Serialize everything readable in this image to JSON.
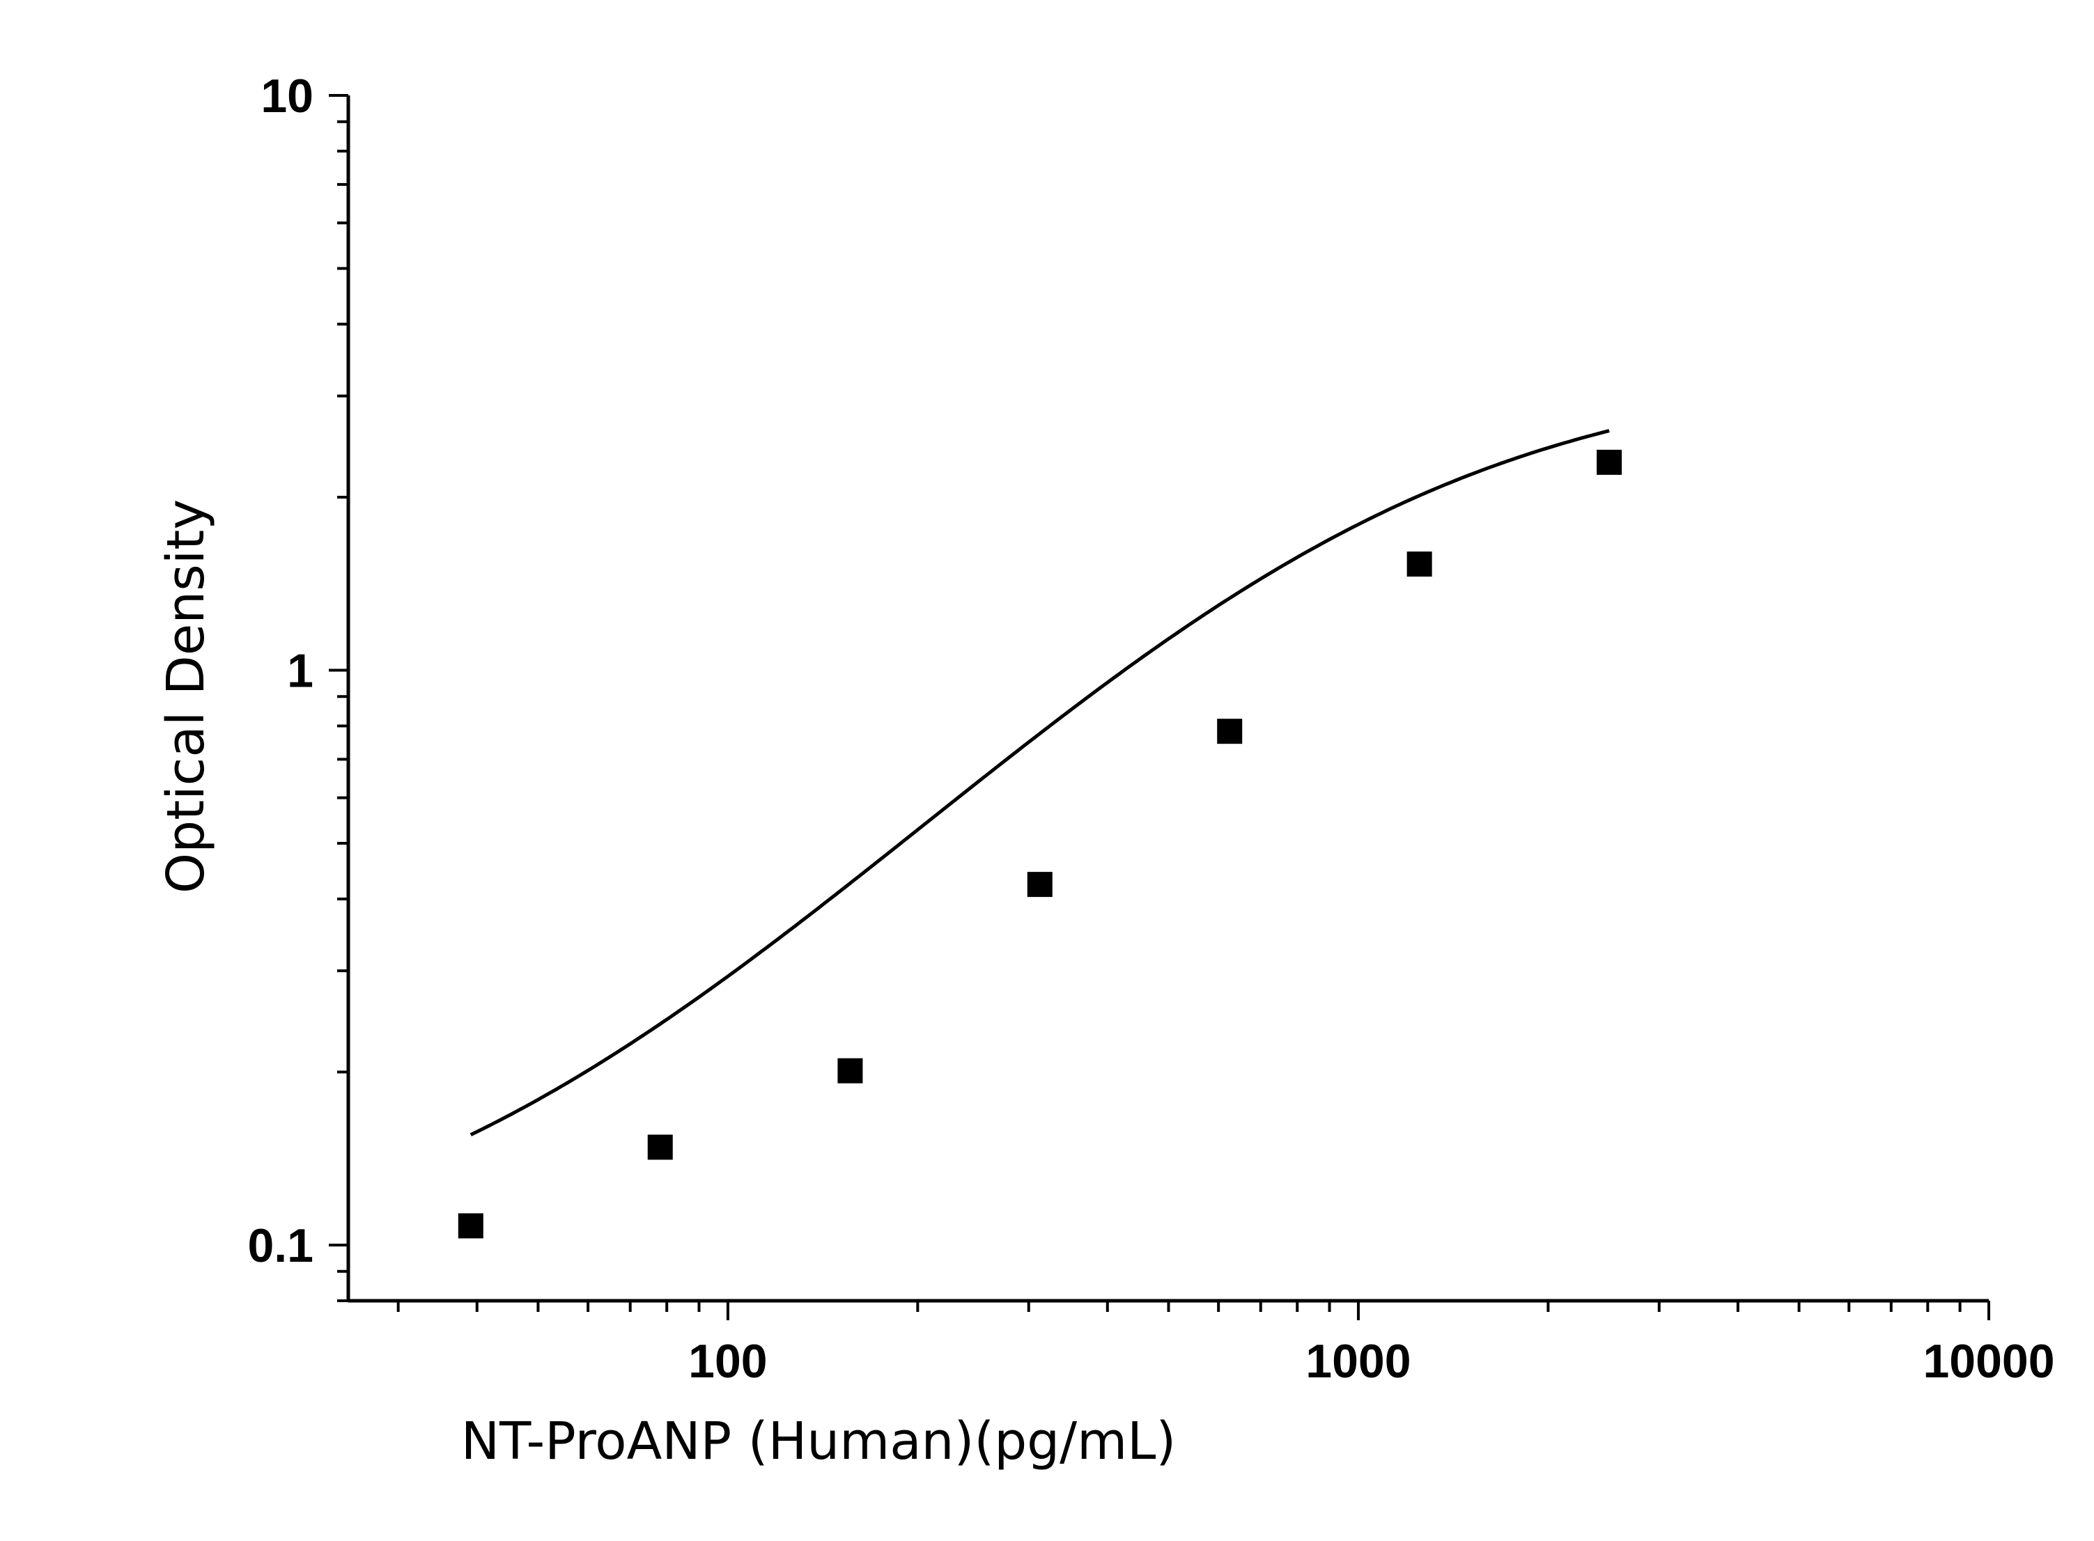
{
  "chart_data": {
    "type": "scatter",
    "title": "",
    "xlabel": "NT-ProANP (Human)(pg/mL)",
    "ylabel": "Optical Density",
    "x_scale": "log",
    "y_scale": "log",
    "xlim": [
      25,
      10000
    ],
    "ylim": [
      0.08,
      10
    ],
    "x_ticks": [
      100,
      1000,
      10000
    ],
    "x_tick_labels": [
      "100",
      "1000",
      "10000"
    ],
    "y_ticks": [
      0.1,
      1,
      10
    ],
    "y_tick_labels": [
      "0.1",
      "1",
      "10"
    ],
    "grid": false,
    "legend": "none",
    "series": [
      {
        "marker": "square",
        "color": "#000000",
        "x": [
          39.1,
          78.1,
          156.3,
          312.5,
          625,
          1250,
          2500
        ],
        "y": [
          0.108,
          0.148,
          0.201,
          0.424,
          0.783,
          1.53,
          2.3
        ]
      }
    ],
    "fit": {
      "type": "4PL",
      "color": "#000000",
      "x_range": [
        39.1,
        2500
      ],
      "bottom": 0.085,
      "top": 3.4,
      "ec50": 950,
      "hill": 1.2
    }
  }
}
